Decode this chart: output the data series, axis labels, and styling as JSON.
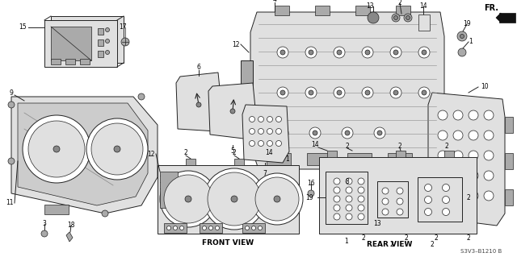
{
  "fig_width": 6.4,
  "fig_height": 3.19,
  "dpi": 100,
  "bg_color": "#ffffff",
  "lc": "#222222",
  "front_view_label": "FRONT VIEW",
  "rear_view_label": "REAR VIEW",
  "code_label": "S3V3–B1210 B",
  "fr_label": "FR.",
  "fs_label": 5.5,
  "fs_view": 6.5,
  "fs_code": 5.0
}
